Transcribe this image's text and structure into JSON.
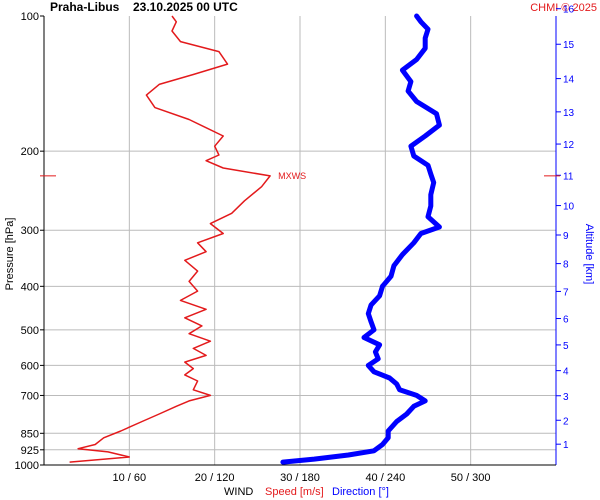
{
  "header": {
    "station": "Praha-Libus",
    "datetime": "23.10.2025 00 UTC",
    "credit": "CHMI © 2025"
  },
  "colors": {
    "speed": "#e31a1c",
    "direction": "#0000ff",
    "grid": "#bbbbbb",
    "text": "#000000"
  },
  "chart_data": {
    "type": "line",
    "title": "Praha-Libus    23.10.2025 00 UTC",
    "ylabel": "Pressure [hPa]",
    "y2label": "Altitude [km]",
    "xlabel": "WIND",
    "xlabel_speed": "Speed [m/s]",
    "xlabel_direction": "Direction [°]",
    "y_scale": "log",
    "ylim": [
      1000,
      100
    ],
    "pressure_ticks": [
      100,
      200,
      300,
      400,
      500,
      600,
      700,
      850,
      925,
      1000
    ],
    "altitude_ticks": [
      1,
      2,
      3,
      4,
      5,
      6,
      7,
      8,
      9,
      10,
      11,
      12,
      13,
      14,
      15,
      16
    ],
    "x_ticks": [
      "10 / 60",
      "20 / 120",
      "30 / 180",
      "40 / 240",
      "50 / 300"
    ],
    "x_tick_values_speed": [
      10,
      20,
      30,
      40,
      50
    ],
    "x_tick_values_direction": [
      60,
      120,
      180,
      240,
      300
    ],
    "xlim_speed": [
      0,
      60
    ],
    "xlim_direction": [
      0,
      360
    ],
    "grid": true,
    "mxws": {
      "label": "MXWS",
      "pressure": 227,
      "speed": 26.5
    },
    "series": [
      {
        "name": "Speed [m/s]",
        "unit": "m/s",
        "points": [
          [
            985,
            3
          ],
          [
            960,
            10
          ],
          [
            935,
            7.5
          ],
          [
            920,
            4
          ],
          [
            900,
            6
          ],
          [
            870,
            7
          ],
          [
            840,
            9
          ],
          [
            800,
            11.5
          ],
          [
            770,
            13.5
          ],
          [
            740,
            15.5
          ],
          [
            720,
            17
          ],
          [
            700,
            19.5
          ],
          [
            680,
            17.5
          ],
          [
            650,
            18
          ],
          [
            630,
            16.5
          ],
          [
            610,
            17.5
          ],
          [
            590,
            16.5
          ],
          [
            570,
            19
          ],
          [
            550,
            17.5
          ],
          [
            530,
            19.5
          ],
          [
            510,
            17
          ],
          [
            490,
            18.5
          ],
          [
            470,
            16.5
          ],
          [
            450,
            19
          ],
          [
            430,
            16
          ],
          [
            410,
            18
          ],
          [
            390,
            17
          ],
          [
            370,
            18
          ],
          [
            350,
            16.5
          ],
          [
            335,
            19
          ],
          [
            320,
            18
          ],
          [
            305,
            21
          ],
          [
            290,
            19.5
          ],
          [
            275,
            22
          ],
          [
            258,
            23.5
          ],
          [
            240,
            25.5
          ],
          [
            227,
            26.5
          ],
          [
            218,
            21
          ],
          [
            210,
            19
          ],
          [
            204,
            20.5
          ],
          [
            195,
            20
          ],
          [
            185,
            21
          ],
          [
            170,
            17
          ],
          [
            160,
            13
          ],
          [
            150,
            12
          ],
          [
            142,
            13.5
          ],
          [
            135,
            17.5
          ],
          [
            128,
            21.5
          ],
          [
            120,
            20.5
          ],
          [
            114,
            16
          ],
          [
            108,
            15
          ],
          [
            103,
            15.5
          ],
          [
            100,
            15
          ]
        ]
      },
      {
        "name": "Direction [°]",
        "unit": "°",
        "points": [
          [
            985,
            168
          ],
          [
            970,
            190
          ],
          [
            950,
            214
          ],
          [
            930,
            232
          ],
          [
            900,
            238
          ],
          [
            870,
            242
          ],
          [
            840,
            242
          ],
          [
            800,
            248
          ],
          [
            770,
            255
          ],
          [
            740,
            260
          ],
          [
            720,
            268
          ],
          [
            700,
            262
          ],
          [
            680,
            250
          ],
          [
            660,
            248
          ],
          [
            640,
            243
          ],
          [
            620,
            232
          ],
          [
            600,
            228
          ],
          [
            580,
            235
          ],
          [
            560,
            233
          ],
          [
            540,
            236
          ],
          [
            520,
            225
          ],
          [
            500,
            232
          ],
          [
            480,
            230
          ],
          [
            460,
            228
          ],
          [
            440,
            230
          ],
          [
            420,
            236
          ],
          [
            400,
            238
          ],
          [
            380,
            244
          ],
          [
            360,
            246
          ],
          [
            340,
            252
          ],
          [
            320,
            260
          ],
          [
            305,
            265
          ],
          [
            295,
            278
          ],
          [
            280,
            270
          ],
          [
            265,
            272
          ],
          [
            250,
            272
          ],
          [
            235,
            274
          ],
          [
            225,
            272
          ],
          [
            215,
            270
          ],
          [
            205,
            260
          ],
          [
            195,
            258
          ],
          [
            185,
            268
          ],
          [
            175,
            278
          ],
          [
            165,
            276
          ],
          [
            155,
            262
          ],
          [
            147,
            256
          ],
          [
            140,
            258
          ],
          [
            132,
            252
          ],
          [
            125,
            262
          ],
          [
            118,
            268
          ],
          [
            112,
            268
          ],
          [
            107,
            270
          ],
          [
            103,
            265
          ],
          [
            100,
            262
          ]
        ]
      }
    ]
  }
}
